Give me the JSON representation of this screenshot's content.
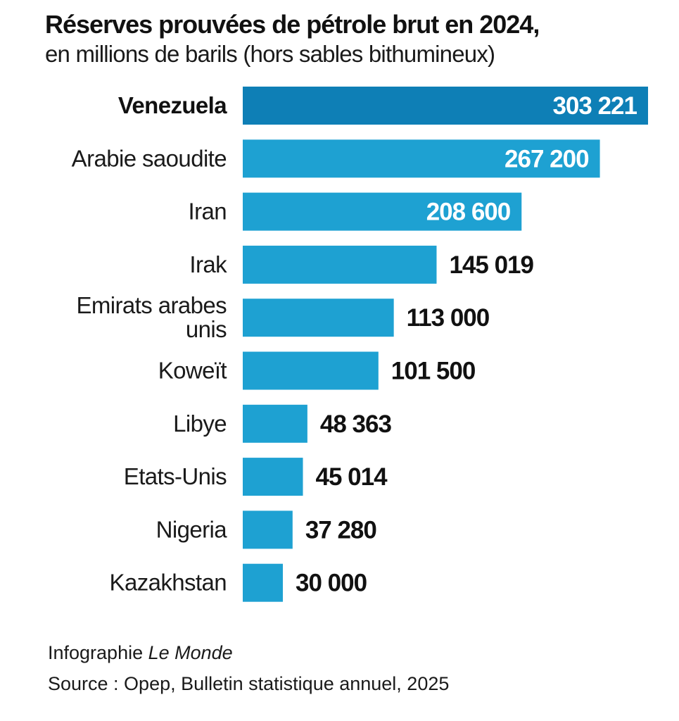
{
  "header": {
    "title": "Réserves prouvées de pétrole brut en 2024,",
    "subtitle": "en millions de barils (hors sables bithumineux)"
  },
  "footer": {
    "credit_prefix": "Infographie ",
    "credit_outlet": "Le Monde",
    "source": "Source : Opep, Bulletin statistique annuel, 2025"
  },
  "colors": {
    "bar": "#1ea1d2",
    "highlight_bar": "#0e7fb6",
    "value_inside": "#ffffff",
    "value_outside": "#111111"
  },
  "chart_data": {
    "type": "bar",
    "orientation": "horizontal",
    "title": "Réserves prouvées de pétrole brut en 2024,",
    "subtitle": "en millions de barils (hors sables bithumineux)",
    "categories": [
      [
        "Venezuela"
      ],
      [
        "Arabie saoudite"
      ],
      [
        "Iran"
      ],
      [
        "Irak"
      ],
      [
        "Emirats arabes",
        "unis"
      ],
      [
        "Koweït"
      ],
      [
        "Libye"
      ],
      [
        "Etats-Unis"
      ],
      [
        "Nigeria"
      ],
      [
        "Kazakhstan"
      ]
    ],
    "values": [
      303221,
      267200,
      208600,
      145019,
      113000,
      101500,
      48363,
      45014,
      37280,
      30000
    ],
    "value_labels": [
      "303 221",
      "267 200",
      "208 600",
      "145 019",
      "113 000",
      "101 500",
      "48 363",
      "45 014",
      "37 280",
      "30 000"
    ],
    "highlight": "Venezuela",
    "xlim": [
      0,
      303221
    ],
    "grid": false,
    "legend": "none"
  }
}
